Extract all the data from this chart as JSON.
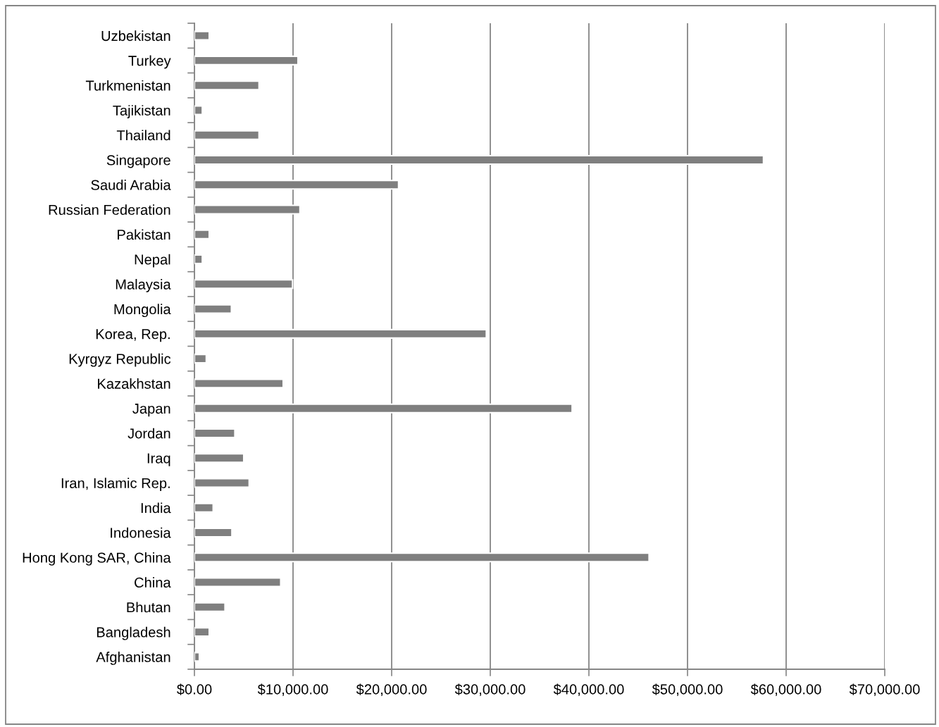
{
  "chart_data": {
    "type": "bar",
    "orientation": "horizontal",
    "categories": [
      "Uzbekistan",
      "Turkey",
      "Turkmenistan",
      "Tajikistan",
      "Thailand",
      "Singapore",
      "Saudi Arabia",
      "Russian Federation",
      "Pakistan",
      "Nepal",
      "Malaysia",
      "Mongolia",
      "Korea, Rep.",
      "Kyrgyz Republic",
      "Kazakhstan",
      "Japan",
      "Jordan",
      "Iraq",
      "Iran, Islamic Rep.",
      "India",
      "Indonesia",
      "Hong Kong SAR, China",
      "China",
      "Bhutan",
      "Bangladesh",
      "Afghanistan"
    ],
    "values": [
      1500,
      10500,
      6550,
      800,
      6550,
      57700,
      20700,
      10700,
      1500,
      800,
      9950,
      3750,
      29600,
      1200,
      9000,
      38300,
      4100,
      5000,
      5550,
      1900,
      3800,
      46100,
      8750,
      3100,
      1500,
      500
    ],
    "color": "#7f7f7f",
    "xlim": [
      0,
      70000
    ],
    "xticks": [
      {
        "value": 0,
        "label": "$0.00"
      },
      {
        "value": 10000,
        "label": "$10,000.00"
      },
      {
        "value": 20000,
        "label": "$20,000.00"
      },
      {
        "value": 30000,
        "label": "$30,000.00"
      },
      {
        "value": 40000,
        "label": "$40,000.00"
      },
      {
        "value": 50000,
        "label": "$50,000.00"
      },
      {
        "value": 60000,
        "label": "$60,000.00"
      },
      {
        "value": 70000,
        "label": "$70,000.00"
      }
    ],
    "grid": "x"
  }
}
